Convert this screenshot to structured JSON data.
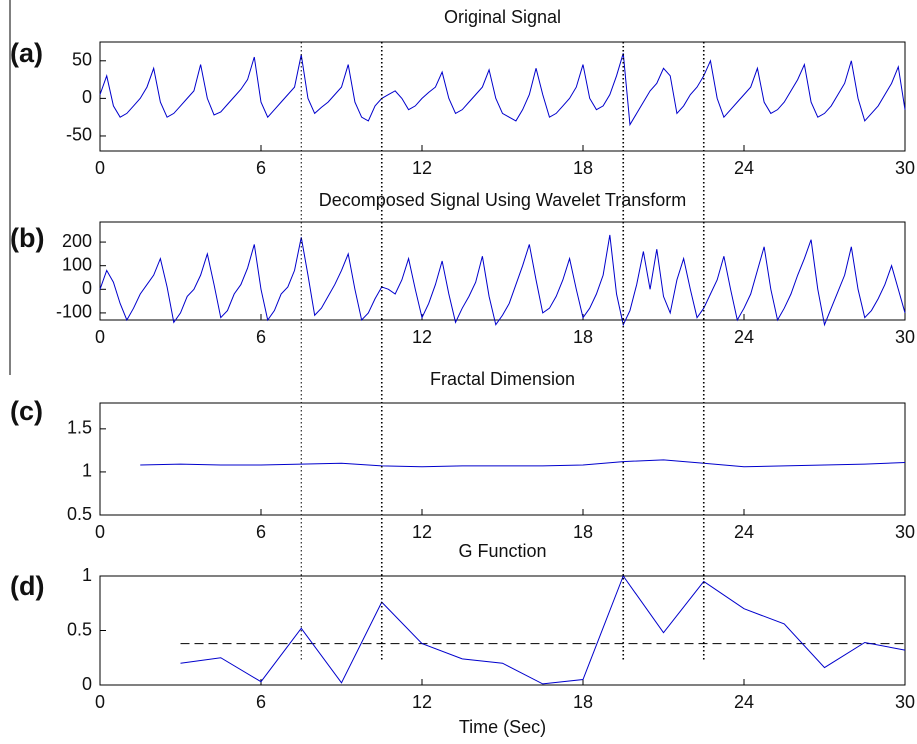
{
  "chart_data": [
    {
      "type": "line",
      "label": "(a)",
      "title": "Original Signal",
      "color": "#0000cc",
      "x": [
        0,
        0.25,
        0.5,
        0.75,
        1,
        1.25,
        1.5,
        1.75,
        2,
        2.25,
        2.5,
        2.75,
        3,
        3.25,
        3.5,
        3.75,
        4,
        4.25,
        4.5,
        4.75,
        5,
        5.25,
        5.5,
        5.75,
        6,
        6.25,
        6.5,
        6.75,
        7,
        7.25,
        7.5,
        7.75,
        8,
        8.25,
        8.5,
        8.75,
        9,
        9.25,
        9.5,
        9.75,
        10,
        10.25,
        10.5,
        10.75,
        11,
        11.25,
        11.5,
        11.75,
        12,
        12.25,
        12.5,
        12.75,
        13,
        13.25,
        13.5,
        13.75,
        14,
        14.25,
        14.5,
        14.75,
        15,
        15.25,
        15.5,
        15.75,
        16,
        16.25,
        16.5,
        16.75,
        17,
        17.25,
        17.5,
        17.75,
        18,
        18.25,
        18.5,
        18.75,
        19,
        19.25,
        19.5,
        19.75,
        20,
        20.25,
        20.5,
        20.75,
        21,
        21.25,
        21.5,
        21.75,
        22,
        22.25,
        22.5,
        22.75,
        23,
        23.25,
        23.5,
        23.75,
        24,
        24.25,
        24.5,
        24.75,
        25,
        25.25,
        25.5,
        25.75,
        26,
        26.25,
        26.5,
        26.75,
        27,
        27.25,
        27.5,
        27.75,
        28,
        28.25,
        28.5,
        28.75,
        29,
        29.25,
        29.5,
        29.75,
        30
      ],
      "values": [
        5,
        30,
        -10,
        -25,
        -20,
        -10,
        0,
        15,
        40,
        -5,
        -25,
        -20,
        -10,
        0,
        10,
        45,
        0,
        -22,
        -18,
        -8,
        2,
        12,
        25,
        55,
        -5,
        -25,
        -15,
        -5,
        5,
        15,
        58,
        0,
        -20,
        -12,
        -5,
        5,
        15,
        45,
        -5,
        -25,
        -30,
        -10,
        0,
        5,
        10,
        0,
        -15,
        -10,
        0,
        8,
        15,
        35,
        0,
        -20,
        -15,
        -5,
        5,
        15,
        38,
        0,
        -20,
        -25,
        -30,
        -15,
        5,
        40,
        5,
        -25,
        -20,
        -10,
        0,
        15,
        45,
        0,
        -15,
        -10,
        5,
        30,
        60,
        -35,
        -20,
        -5,
        10,
        20,
        40,
        30,
        -20,
        -10,
        5,
        15,
        30,
        50,
        0,
        -25,
        -15,
        -5,
        5,
        15,
        40,
        -5,
        -20,
        -15,
        -5,
        10,
        25,
        45,
        -5,
        -25,
        -20,
        -10,
        5,
        20,
        50,
        0,
        -30,
        -20,
        -10,
        5,
        20,
        42,
        -15
      ],
      "xlim": [
        0,
        30
      ],
      "xticks": [
        0,
        6,
        12,
        18,
        24,
        30
      ],
      "ylim": [
        -70,
        75
      ],
      "yticks": [
        -50,
        0,
        50
      ]
    },
    {
      "type": "line",
      "label": "(b)",
      "title": "Decomposed Signal Using Wavelet Transform",
      "color": "#0000cc",
      "x": [
        0,
        0.25,
        0.5,
        0.75,
        1,
        1.25,
        1.5,
        1.75,
        2,
        2.25,
        2.5,
        2.75,
        3,
        3.25,
        3.5,
        3.75,
        4,
        4.25,
        4.5,
        4.75,
        5,
        5.25,
        5.5,
        5.75,
        6,
        6.25,
        6.5,
        6.75,
        7,
        7.25,
        7.5,
        7.75,
        8,
        8.25,
        8.5,
        8.75,
        9,
        9.25,
        9.5,
        9.75,
        10,
        10.25,
        10.5,
        10.75,
        11,
        11.25,
        11.5,
        11.75,
        12,
        12.25,
        12.5,
        12.75,
        13,
        13.25,
        13.5,
        13.75,
        14,
        14.25,
        14.5,
        14.75,
        15,
        15.25,
        15.5,
        15.75,
        16,
        16.25,
        16.5,
        16.75,
        17,
        17.25,
        17.5,
        17.75,
        18,
        18.25,
        18.5,
        18.75,
        19,
        19.25,
        19.5,
        19.75,
        20,
        20.25,
        20.5,
        20.75,
        21,
        21.25,
        21.5,
        21.75,
        22,
        22.25,
        22.5,
        22.75,
        23,
        23.25,
        23.5,
        23.75,
        24,
        24.25,
        24.5,
        24.75,
        25,
        25.25,
        25.5,
        25.75,
        26,
        26.25,
        26.5,
        26.75,
        27,
        27.25,
        27.5,
        27.75,
        28,
        28.25,
        28.5,
        28.75,
        29,
        29.25,
        29.5,
        29.75,
        30
      ],
      "values": [
        0,
        80,
        30,
        -60,
        -130,
        -80,
        -20,
        20,
        60,
        130,
        10,
        -140,
        -100,
        -30,
        0,
        60,
        150,
        20,
        -120,
        -90,
        -20,
        20,
        90,
        190,
        0,
        -130,
        -90,
        -20,
        10,
        80,
        220,
        60,
        -110,
        -80,
        -30,
        20,
        80,
        150,
        0,
        -130,
        -100,
        -40,
        10,
        0,
        -20,
        40,
        130,
        0,
        -120,
        -60,
        20,
        120,
        -20,
        -140,
        -80,
        -30,
        30,
        140,
        -30,
        -150,
        -110,
        -60,
        20,
        100,
        190,
        40,
        -100,
        -80,
        -30,
        40,
        130,
        0,
        -120,
        -80,
        -20,
        60,
        230,
        -20,
        -150,
        -90,
        20,
        160,
        0,
        170,
        -30,
        -100,
        40,
        130,
        0,
        -120,
        -80,
        -20,
        40,
        140,
        0,
        -130,
        -80,
        -20,
        80,
        180,
        0,
        -130,
        -80,
        -20,
        60,
        130,
        210,
        0,
        -150,
        -80,
        -10,
        60,
        180,
        0,
        -120,
        -90,
        -40,
        20,
        100,
        0,
        -100
      ],
      "xlim": [
        0,
        30
      ],
      "xticks": [
        0,
        6,
        12,
        18,
        24,
        30
      ],
      "ylim": [
        -130,
        285
      ],
      "yticks": [
        -100,
        0,
        100,
        200
      ]
    },
    {
      "type": "line",
      "label": "(c)",
      "title": "Fractal Dimension",
      "color": "#0000cc",
      "x": [
        1.5,
        3,
        4.5,
        6,
        7.5,
        9,
        10.5,
        12,
        13.5,
        15,
        16.5,
        18,
        19.5,
        21,
        22.5,
        24,
        25.5,
        27,
        28.5,
        30
      ],
      "values": [
        1.08,
        1.09,
        1.08,
        1.08,
        1.09,
        1.1,
        1.07,
        1.06,
        1.07,
        1.07,
        1.07,
        1.08,
        1.12,
        1.14,
        1.1,
        1.06,
        1.07,
        1.08,
        1.09,
        1.11
      ],
      "xlim": [
        0,
        30
      ],
      "xticks": [
        0,
        6,
        12,
        18,
        24,
        30
      ],
      "ylim": [
        0.5,
        1.8
      ],
      "yticks": [
        0.5,
        1,
        1.5
      ]
    },
    {
      "type": "line",
      "label": "(d)",
      "title": "G Function",
      "xlabel": "Time (Sec)",
      "color": "#0000cc",
      "x": [
        3,
        4.5,
        6,
        7.5,
        9,
        10.5,
        12,
        13.5,
        15,
        16.5,
        18,
        19.5,
        21,
        22.5,
        24,
        25.5,
        27,
        28.5,
        30
      ],
      "values": [
        0.2,
        0.25,
        0.03,
        0.52,
        0.02,
        0.76,
        0.38,
        0.24,
        0.2,
        0.01,
        0.05,
        1.0,
        0.48,
        0.95,
        0.7,
        0.56,
        0.16,
        0.39,
        0.32
      ],
      "threshold": {
        "value": 0.38,
        "xlim": [
          3,
          30
        ]
      },
      "vlines": [
        7.5,
        10.5,
        19.5,
        22.5
      ],
      "xlim": [
        0,
        30
      ],
      "xticks": [
        0,
        6,
        12,
        18,
        24,
        30
      ],
      "ylim": [
        0,
        1
      ],
      "yticks": [
        0,
        0.5,
        1
      ]
    }
  ]
}
